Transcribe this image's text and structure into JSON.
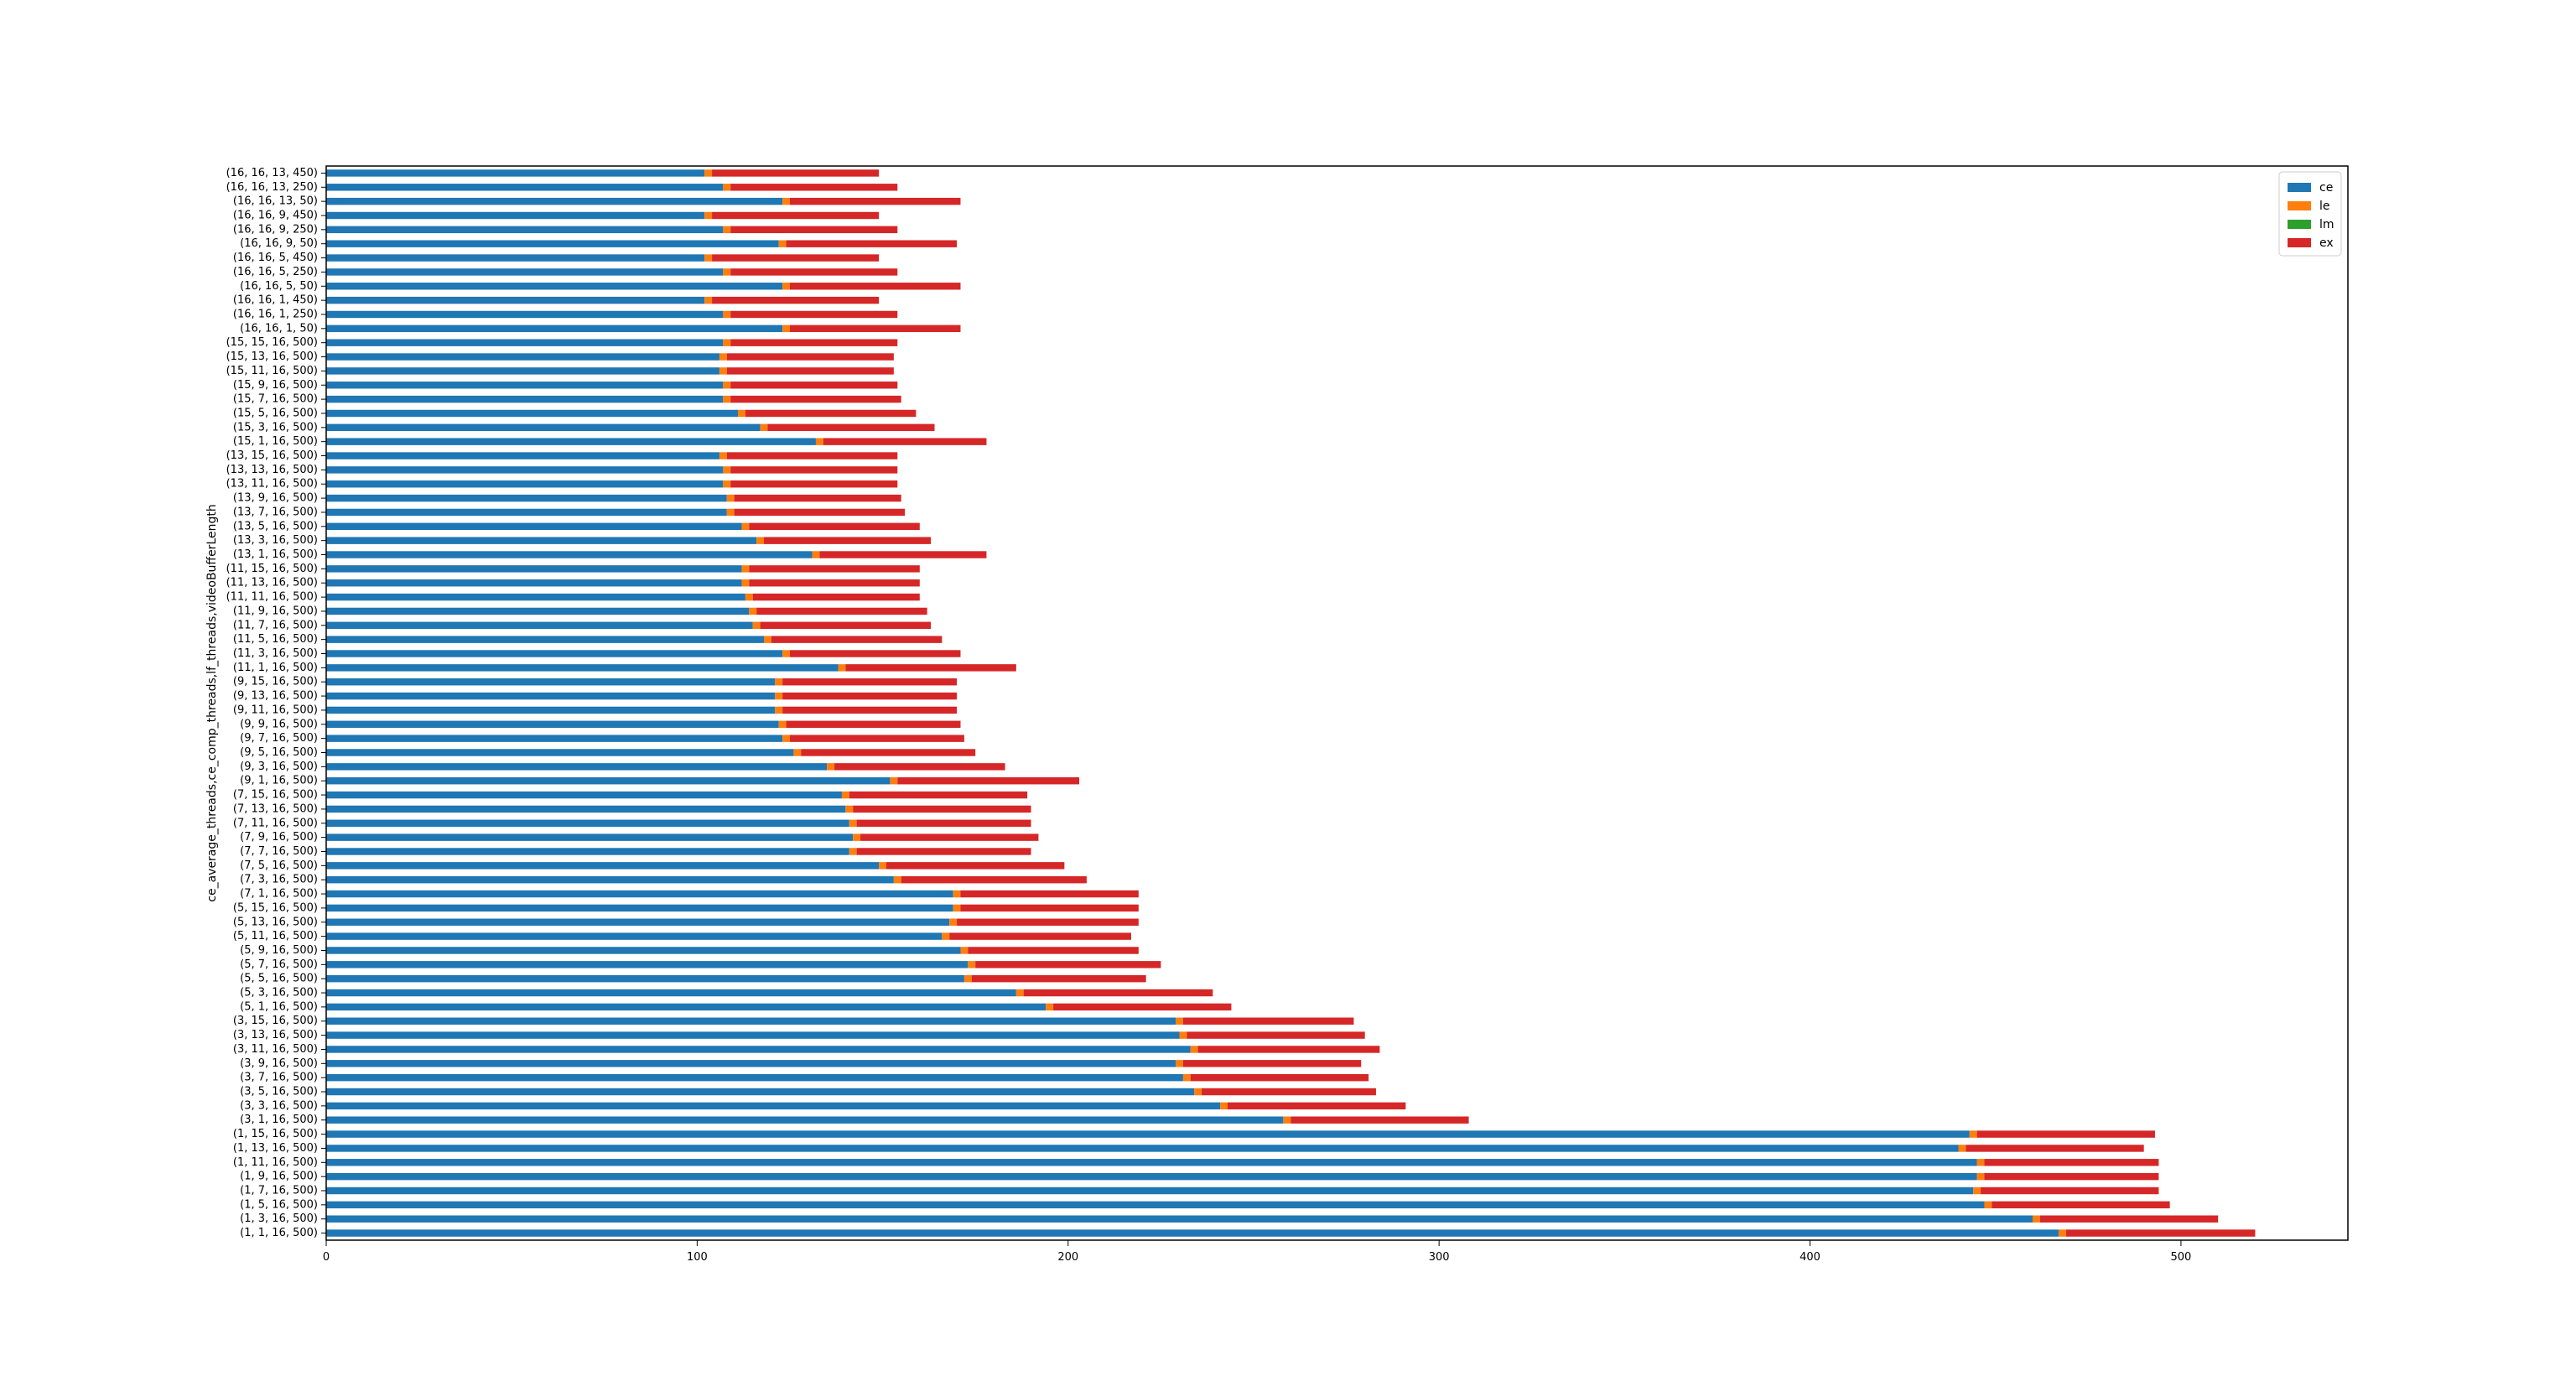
{
  "chart_data": {
    "type": "bar",
    "orientation": "horizontal",
    "stacked": true,
    "ylabel": "ce_average_threads,ce_comp_threads,lf_threads,videoBufferLength",
    "xlabel": "",
    "xlim": [
      0,
      545
    ],
    "xticks": [
      0,
      100,
      200,
      300,
      400,
      500
    ],
    "grid": false,
    "legend_position": "top-right",
    "colors": {
      "ce": "#1f77b4",
      "le": "#ff7f0e",
      "lm": "#2ca02c",
      "ex": "#d62728"
    },
    "categories": [
      "(16, 16, 13, 450)",
      "(16, 16, 13, 250)",
      "(16, 16, 13, 50)",
      "(16, 16, 9, 450)",
      "(16, 16, 9, 250)",
      "(16, 16, 9, 50)",
      "(16, 16, 5, 450)",
      "(16, 16, 5, 250)",
      "(16, 16, 5, 50)",
      "(16, 16, 1, 450)",
      "(16, 16, 1, 250)",
      "(16, 16, 1, 50)",
      "(15, 15, 16, 500)",
      "(15, 13, 16, 500)",
      "(15, 11, 16, 500)",
      "(15, 9, 16, 500)",
      "(15, 7, 16, 500)",
      "(15, 5, 16, 500)",
      "(15, 3, 16, 500)",
      "(15, 1, 16, 500)",
      "(13, 15, 16, 500)",
      "(13, 13, 16, 500)",
      "(13, 11, 16, 500)",
      "(13, 9, 16, 500)",
      "(13, 7, 16, 500)",
      "(13, 5, 16, 500)",
      "(13, 3, 16, 500)",
      "(13, 1, 16, 500)",
      "(11, 15, 16, 500)",
      "(11, 13, 16, 500)",
      "(11, 11, 16, 500)",
      "(11, 9, 16, 500)",
      "(11, 7, 16, 500)",
      "(11, 5, 16, 500)",
      "(11, 3, 16, 500)",
      "(11, 1, 16, 500)",
      "(9, 15, 16, 500)",
      "(9, 13, 16, 500)",
      "(9, 11, 16, 500)",
      "(9, 9, 16, 500)",
      "(9, 7, 16, 500)",
      "(9, 5, 16, 500)",
      "(9, 3, 16, 500)",
      "(9, 1, 16, 500)",
      "(7, 15, 16, 500)",
      "(7, 13, 16, 500)",
      "(7, 11, 16, 500)",
      "(7, 9, 16, 500)",
      "(7, 7, 16, 500)",
      "(7, 5, 16, 500)",
      "(7, 3, 16, 500)",
      "(7, 1, 16, 500)",
      "(5, 15, 16, 500)",
      "(5, 13, 16, 500)",
      "(5, 11, 16, 500)",
      "(5, 9, 16, 500)",
      "(5, 7, 16, 500)",
      "(5, 5, 16, 500)",
      "(5, 3, 16, 500)",
      "(5, 1, 16, 500)",
      "(3, 15, 16, 500)",
      "(3, 13, 16, 500)",
      "(3, 11, 16, 500)",
      "(3, 9, 16, 500)",
      "(3, 7, 16, 500)",
      "(3, 5, 16, 500)",
      "(3, 3, 16, 500)",
      "(3, 1, 16, 500)",
      "(1, 15, 16, 500)",
      "(1, 13, 16, 500)",
      "(1, 11, 16, 500)",
      "(1, 9, 16, 500)",
      "(1, 7, 16, 500)",
      "(1, 5, 16, 500)",
      "(1, 3, 16, 500)",
      "(1, 1, 16, 500)"
    ],
    "series": [
      {
        "name": "ce",
        "values": [
          102,
          107,
          123,
          102,
          107,
          122,
          102,
          107,
          123,
          102,
          107,
          123,
          107,
          106,
          106,
          107,
          107,
          111,
          117,
          132,
          106,
          107,
          107,
          108,
          108,
          112,
          116,
          131,
          112,
          112,
          113,
          114,
          115,
          118,
          123,
          138,
          121,
          121,
          121,
          122,
          123,
          126,
          135,
          152,
          139,
          140,
          141,
          142,
          141,
          149,
          153,
          169,
          169,
          168,
          166,
          171,
          173,
          172,
          186,
          194,
          229,
          230,
          233,
          229,
          231,
          234,
          241,
          258,
          443,
          440,
          445,
          445,
          444,
          447,
          460,
          467
        ]
      },
      {
        "name": "le",
        "values": [
          2,
          2,
          2,
          2,
          2,
          2,
          2,
          2,
          2,
          2,
          2,
          2,
          2,
          2,
          2,
          2,
          2,
          2,
          2,
          2,
          2,
          2,
          2,
          2,
          2,
          2,
          2,
          2,
          2,
          2,
          2,
          2,
          2,
          2,
          2,
          2,
          2,
          2,
          2,
          2,
          2,
          2,
          2,
          2,
          2,
          2,
          2,
          2,
          2,
          2,
          2,
          2,
          2,
          2,
          2,
          2,
          2,
          2,
          2,
          2,
          2,
          2,
          2,
          2,
          2,
          2,
          2,
          2,
          2,
          2,
          2,
          2,
          2,
          2,
          2,
          2
        ]
      },
      {
        "name": "lm",
        "values": [
          0,
          0,
          0,
          0,
          0,
          0,
          0,
          0,
          0,
          0,
          0,
          0,
          0,
          0,
          0,
          0,
          0,
          0,
          0,
          0,
          0,
          0,
          0,
          0,
          0,
          0,
          0,
          0,
          0,
          0,
          0,
          0,
          0,
          0,
          0,
          0,
          0,
          0,
          0,
          0,
          0,
          0,
          0,
          0,
          0,
          0,
          0,
          0,
          0,
          0,
          0,
          0,
          0,
          0,
          0,
          0,
          0,
          0,
          0,
          0,
          0,
          0,
          0,
          0,
          0,
          0,
          0,
          0,
          0,
          0,
          0,
          0,
          0,
          0,
          0,
          0
        ]
      },
      {
        "name": "ex",
        "values": [
          45,
          45,
          46,
          45,
          45,
          46,
          45,
          45,
          46,
          45,
          45,
          46,
          45,
          45,
          45,
          45,
          46,
          46,
          45,
          44,
          46,
          45,
          45,
          45,
          46,
          46,
          45,
          45,
          46,
          46,
          45,
          46,
          46,
          46,
          46,
          46,
          47,
          47,
          47,
          47,
          47,
          47,
          46,
          49,
          48,
          48,
          47,
          48,
          47,
          48,
          50,
          48,
          48,
          49,
          49,
          46,
          50,
          47,
          51,
          48,
          46,
          48,
          49,
          48,
          48,
          47,
          48,
          48,
          48,
          48,
          47,
          47,
          48,
          48,
          48,
          51
        ]
      }
    ]
  }
}
